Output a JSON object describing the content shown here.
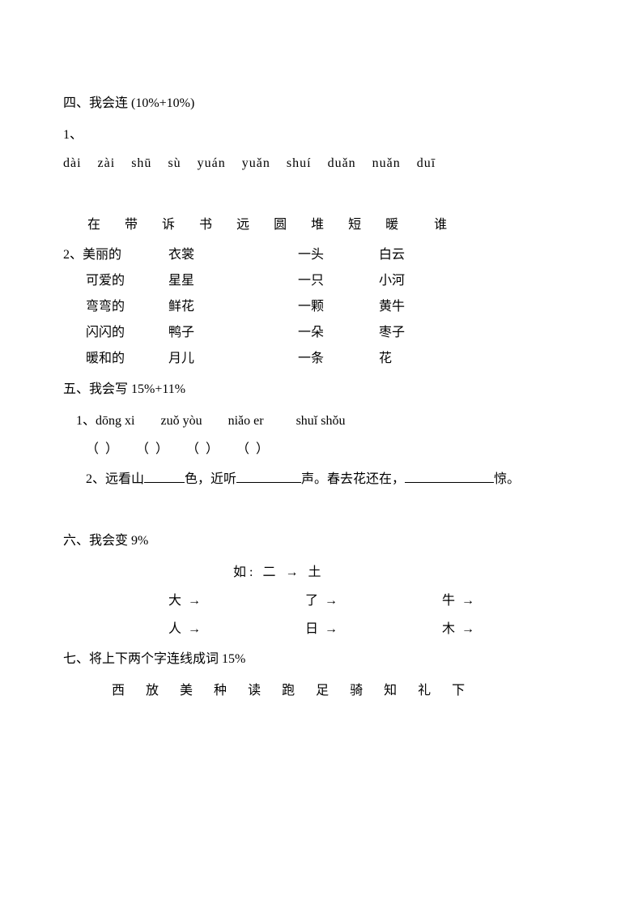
{
  "section4": {
    "title": "四、我会连   (10%+10%)",
    "q1_label": "1、",
    "pinyin": [
      "dài",
      "zài",
      "shū",
      "sù",
      "yuán",
      "yuǎn",
      "shuí",
      "duǎn",
      "nuǎn",
      "duī"
    ],
    "chars": [
      "在",
      "带",
      "诉",
      "书",
      "远",
      "圆",
      "堆",
      "短",
      "暖",
      "谁"
    ],
    "q2_label": "2、",
    "q2_rows": [
      {
        "a": "美丽的",
        "b": "衣裳",
        "c": "一头",
        "d": "白云"
      },
      {
        "a": "可爱的",
        "b": "星星",
        "c": "一只",
        "d": "小河"
      },
      {
        "a": "弯弯的",
        "b": "鲜花",
        "c": "一颗",
        "d": "黄牛"
      },
      {
        "a": "闪闪的",
        "b": "鸭子",
        "c": "一朵",
        "d": "枣子"
      },
      {
        "a": "暖和的",
        "b": "月儿",
        "c": "一条",
        "d": "花"
      }
    ]
  },
  "section5": {
    "title": "五、我会写  15%+11%",
    "q1_label": "1、",
    "q1_pinyin": [
      "dōng xi",
      "zuǒ yòu",
      "niǎo er",
      "shuǐ shǒu"
    ],
    "paren": "（          ）",
    "q2_label": "2、",
    "q2_parts": {
      "p1": "远看山",
      "p2": "色，近听",
      "p3": "声。春去花还在，",
      "p4": "惊。"
    }
  },
  "section6": {
    "title": "六、我会变 9%",
    "example": "如:  二 →   土",
    "rows": [
      [
        "大 →",
        "了 →",
        "牛 →"
      ],
      [
        "人 →",
        "日 →",
        "木 →"
      ]
    ]
  },
  "section7": {
    "title": "七、将上下两个字连线成词 15%",
    "chars": [
      "西",
      "放",
      "美",
      "种",
      "读",
      "跑",
      "足",
      "骑",
      "知",
      "礼",
      "下"
    ]
  }
}
